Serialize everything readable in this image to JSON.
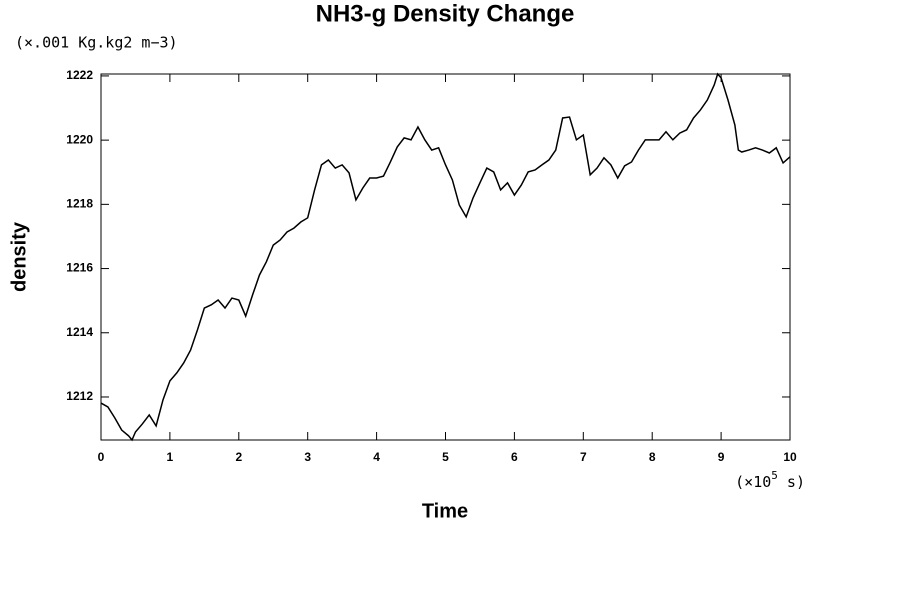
{
  "chart_data": {
    "type": "line",
    "title": "NH3-g Density Change",
    "y_unit": "(×.001 Kg.kg2 m−3)",
    "x_unit": {
      "prefix": "(×10",
      "exponent": "5",
      "suffix": " s)"
    },
    "xlabel": "Time",
    "ylabel": "density",
    "x": [
      0,
      0.1,
      0.2,
      0.3,
      0.4,
      0.45,
      0.5,
      0.6,
      0.7,
      0.8,
      0.9,
      1.0,
      1.1,
      1.2,
      1.3,
      1.4,
      1.5,
      1.6,
      1.7,
      1.8,
      1.9,
      2.0,
      2.1,
      2.2,
      2.3,
      2.4,
      2.5,
      2.6,
      2.7,
      2.8,
      2.9,
      3.0,
      3.1,
      3.2,
      3.3,
      3.4,
      3.5,
      3.6,
      3.7,
      3.8,
      3.9,
      4.0,
      4.1,
      4.2,
      4.3,
      4.4,
      4.5,
      4.6,
      4.7,
      4.8,
      4.9,
      5.0,
      5.1,
      5.2,
      5.3,
      5.4,
      5.5,
      5.6,
      5.7,
      5.8,
      5.9,
      6.0,
      6.1,
      6.2,
      6.3,
      6.4,
      6.5,
      6.6,
      6.7,
      6.8,
      6.9,
      7.0,
      7.1,
      7.2,
      7.3,
      7.4,
      7.5,
      7.6,
      7.7,
      7.8,
      7.9,
      8.0,
      8.1,
      8.2,
      8.3,
      8.4,
      8.5,
      8.6,
      8.7,
      8.8,
      8.9,
      8.95,
      9.0,
      9.1,
      9.2,
      9.25,
      9.3,
      9.4,
      9.5,
      9.6,
      9.7,
      9.8,
      9.9,
      10
    ],
    "series": [
      {
        "color": "#000000",
        "values": [
          1211.81,
          1211.69,
          1211.35,
          1210.97,
          1210.79,
          1210.66,
          1210.91,
          1211.16,
          1211.44,
          1211.1,
          1211.91,
          1212.5,
          1212.75,
          1213.06,
          1213.46,
          1214.09,
          1214.77,
          1214.87,
          1215.02,
          1214.77,
          1215.08,
          1215.02,
          1214.52,
          1215.18,
          1215.8,
          1216.21,
          1216.73,
          1216.89,
          1217.14,
          1217.26,
          1217.45,
          1217.58,
          1218.45,
          1219.23,
          1219.38,
          1219.13,
          1219.23,
          1218.98,
          1218.14,
          1218.51,
          1218.82,
          1218.82,
          1218.88,
          1219.32,
          1219.79,
          1220.07,
          1220.01,
          1220.41,
          1220.01,
          1219.69,
          1219.76,
          1219.23,
          1218.76,
          1217.98,
          1217.61,
          1218.2,
          1218.67,
          1219.13,
          1219.01,
          1218.45,
          1218.67,
          1218.29,
          1218.6,
          1219.01,
          1219.07,
          1219.23,
          1219.38,
          1219.69,
          1220.69,
          1220.72,
          1220.01,
          1220.16,
          1218.92,
          1219.13,
          1219.45,
          1219.23,
          1218.82,
          1219.2,
          1219.32,
          1219.69,
          1220.01,
          1220.01,
          1220.01,
          1220.26,
          1220.01,
          1220.22,
          1220.32,
          1220.69,
          1220.94,
          1221.25,
          1221.72,
          1222.06,
          1221.94,
          1221.25,
          1220.47,
          1219.69,
          1219.63,
          1219.69,
          1219.76,
          1219.69,
          1219.6,
          1219.76,
          1219.29,
          1219.48
        ]
      }
    ],
    "xlim": [
      0,
      10
    ],
    "ylim": [
      1210.66,
      1222.06
    ],
    "xticks": [
      0,
      1,
      2,
      3,
      4,
      5,
      6,
      7,
      8,
      9,
      10
    ],
    "yticks": [
      1212,
      1214,
      1216,
      1218,
      1220,
      1222
    ]
  }
}
